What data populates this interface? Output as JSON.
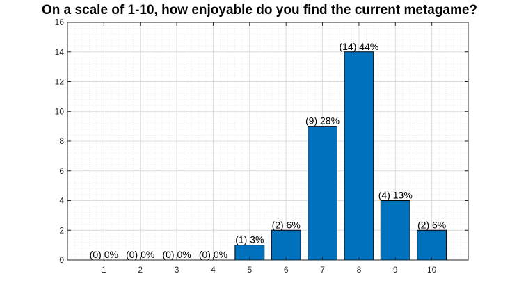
{
  "chart_data": {
    "type": "bar",
    "title": "On a scale of 1-10, how enjoyable do you find the current metagame?",
    "xlabel": "",
    "ylabel": "",
    "categories": [
      "1",
      "2",
      "3",
      "4",
      "5",
      "6",
      "7",
      "8",
      "9",
      "10"
    ],
    "values": [
      0,
      0,
      0,
      0,
      1,
      2,
      9,
      14,
      4,
      2
    ],
    "data_labels": [
      "(0) 0%",
      "(0) 0%",
      "(0) 0%",
      "(0) 0%",
      "(1) 3%",
      "(2) 6%",
      "(9) 28%",
      "(14) 44%",
      "(4) 13%",
      "(2) 6%"
    ],
    "ylim": [
      0,
      16
    ],
    "yticks": [
      0,
      2,
      4,
      6,
      8,
      10,
      12,
      14,
      16
    ],
    "xlim": [
      0,
      11
    ],
    "grid": true,
    "minor_grid": true,
    "legend": "none",
    "colors": {
      "bar": "#0072BD",
      "bar_edge": "#000000",
      "axis": "#262626",
      "major_grid": "#dcdcdc",
      "minor_grid": "#e6e6e6"
    }
  }
}
